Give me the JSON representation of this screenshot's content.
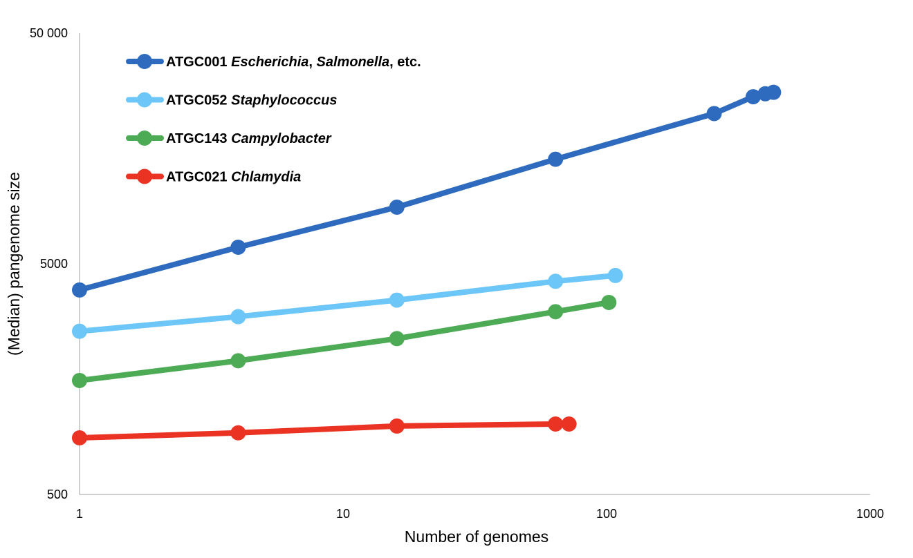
{
  "chart_data": {
    "type": "line",
    "title": "",
    "xlabel": "Number of genomes",
    "ylabel": "(Median) pangenome size",
    "x_scale": "log",
    "y_scale": "log",
    "xlim": [
      1,
      1000
    ],
    "ylim": [
      500,
      50000
    ],
    "x_ticks": [
      {
        "value": 1,
        "label": "1"
      },
      {
        "value": 10,
        "label": "10"
      },
      {
        "value": 100,
        "label": "100"
      },
      {
        "value": 1000,
        "label": "1000"
      }
    ],
    "y_ticks": [
      {
        "value": 500,
        "label": "500"
      },
      {
        "value": 5000,
        "label": "5000"
      },
      {
        "value": 50000,
        "label": "50 000"
      }
    ],
    "grid": false,
    "legend_position": "top-left",
    "series": [
      {
        "name": "ATGC001 Escherichia, Salmonella, etc.",
        "legend": [
          {
            "text": "ATGC001 ",
            "italic": false
          },
          {
            "text": "Escherichia",
            "italic": true
          },
          {
            "text": ", ",
            "italic": false
          },
          {
            "text": "Salmonella",
            "italic": true
          },
          {
            "text": ", etc.",
            "italic": false
          }
        ],
        "color": "#2E6BBF",
        "x": [
          1,
          4,
          16,
          64,
          256,
          360,
          400,
          430
        ],
        "y": [
          3850,
          5900,
          8800,
          14200,
          22400,
          26500,
          27300,
          27700
        ]
      },
      {
        "name": "ATGC052 Staphylococcus",
        "legend": [
          {
            "text": "ATGC052 ",
            "italic": false
          },
          {
            "text": "Staphylococcus",
            "italic": true
          }
        ],
        "color": "#6CC6F8",
        "x": [
          1,
          4,
          16,
          64,
          108
        ],
        "y": [
          2550,
          2950,
          3480,
          4200,
          4450
        ]
      },
      {
        "name": "ATGC143 Campylobacter",
        "legend": [
          {
            "text": "ATGC143 ",
            "italic": false
          },
          {
            "text": "Campylobacter",
            "italic": true
          }
        ],
        "color": "#4DAA55",
        "x": [
          1,
          4,
          16,
          64,
          102
        ],
        "y": [
          1560,
          1900,
          2370,
          3100,
          3400
        ]
      },
      {
        "name": "ATGC021 Chlamydia",
        "legend": [
          {
            "text": "ATGC021 ",
            "italic": false
          },
          {
            "text": "Chlamydia",
            "italic": true
          }
        ],
        "color": "#EA3323",
        "x": [
          1,
          4,
          16,
          64,
          72
        ],
        "y": [
          880,
          925,
          990,
          1010,
          1010
        ]
      }
    ]
  }
}
